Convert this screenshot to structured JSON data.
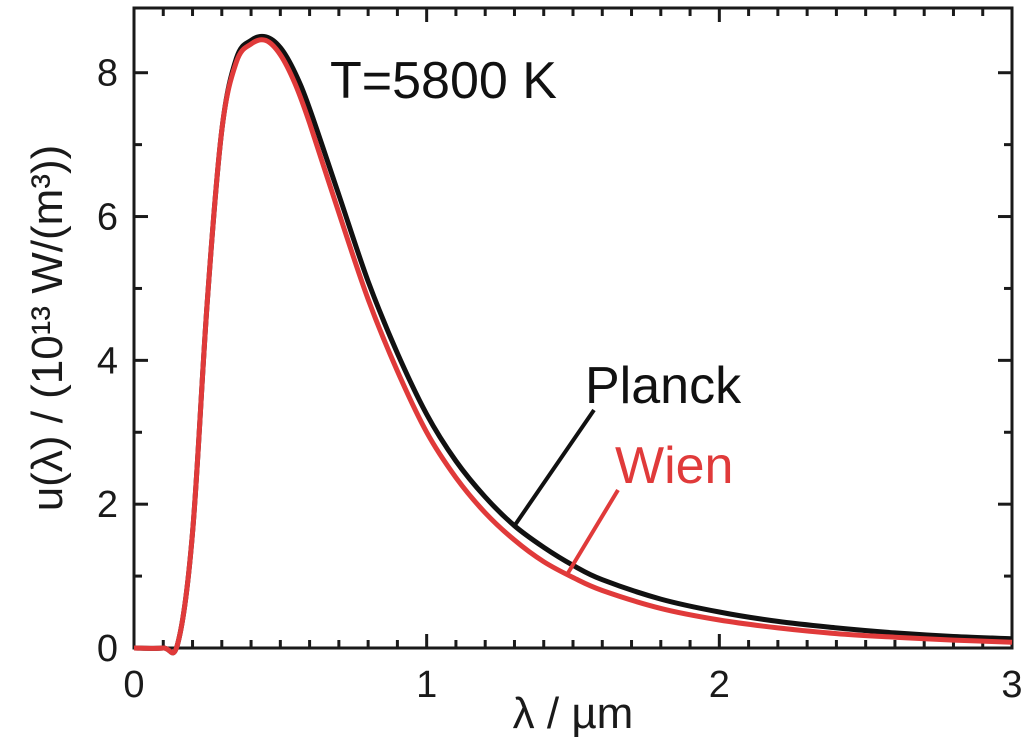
{
  "chart_data": {
    "type": "line",
    "annotation": "T=5800 K",
    "xlabel": "λ / µm",
    "ylabel": "u(λ) / (10¹³ W/(m³))",
    "xlim": [
      0,
      3
    ],
    "ylim": [
      0,
      8.9
    ],
    "x_ticks": [
      "0",
      "1",
      "2",
      "3"
    ],
    "y_ticks": [
      "0",
      "2",
      "4",
      "6",
      "8"
    ],
    "grid": false,
    "series": [
      {
        "name": "Planck",
        "color": "#111111",
        "x": [
          0.1,
          0.15,
          0.2,
          0.25,
          0.3,
          0.35,
          0.4,
          0.45,
          0.5,
          0.55,
          0.6,
          0.7,
          0.8,
          0.9,
          1.0,
          1.1,
          1.2,
          1.3,
          1.4,
          1.5,
          1.6,
          1.8,
          2.0,
          2.2,
          2.4,
          2.6,
          2.8,
          3.0
        ],
        "y": [
          0.0,
          0.07,
          1.6,
          4.8,
          7.2,
          8.2,
          8.45,
          8.5,
          8.35,
          8.0,
          7.5,
          6.3,
          5.1,
          4.1,
          3.25,
          2.6,
          2.1,
          1.7,
          1.4,
          1.15,
          0.95,
          0.68,
          0.5,
          0.37,
          0.28,
          0.21,
          0.16,
          0.13
        ]
      },
      {
        "name": "Wien",
        "color": "#e03a3a",
        "x": [
          0.1,
          0.15,
          0.2,
          0.25,
          0.3,
          0.35,
          0.4,
          0.45,
          0.5,
          0.55,
          0.6,
          0.7,
          0.8,
          0.9,
          1.0,
          1.1,
          1.2,
          1.3,
          1.4,
          1.5,
          1.6,
          1.8,
          2.0,
          2.2,
          2.4,
          2.6,
          2.8,
          3.0
        ],
        "y": [
          0.0,
          0.07,
          1.6,
          4.8,
          7.2,
          8.15,
          8.4,
          8.45,
          8.25,
          7.85,
          7.3,
          6.05,
          4.85,
          3.85,
          3.0,
          2.37,
          1.88,
          1.5,
          1.2,
          0.98,
          0.8,
          0.55,
          0.39,
          0.28,
          0.2,
          0.15,
          0.11,
          0.08
        ]
      }
    ],
    "labels": [
      {
        "text": "Planck",
        "series": "Planck",
        "color": "#111111"
      },
      {
        "text": "Wien",
        "series": "Wien",
        "color": "#e03a3a"
      }
    ]
  }
}
